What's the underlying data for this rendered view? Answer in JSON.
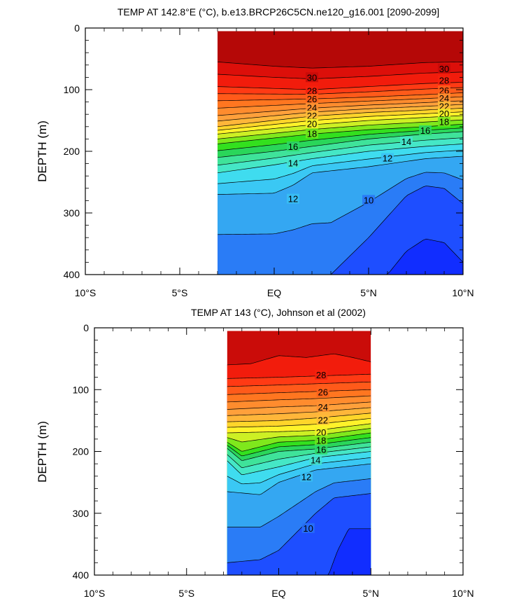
{
  "chart_data": [
    {
      "type": "contour",
      "title": "TEMP AT 142.8°E (°C), b.e13.BRCP26C5CN.ne120_g16.001 [2090-2099]",
      "ylabel": "DEPTH (m)",
      "xlim": [
        -10,
        10
      ],
      "ylim": [
        0,
        400
      ],
      "y_reversed": true,
      "data_extent_lat": [
        -3,
        10
      ],
      "x_ticks": [
        {
          "value": -10,
          "label": "10°S"
        },
        {
          "value": -5,
          "label": "5°S"
        },
        {
          "value": 0,
          "label": "EQ"
        },
        {
          "value": 5,
          "label": "5°N"
        },
        {
          "value": 10,
          "label": "10°N"
        }
      ],
      "y_ticks": [
        0,
        100,
        200,
        300,
        400
      ],
      "contour_interval": 1,
      "isotherms": [
        {
          "level": 30,
          "depth_at": [
            [
              -3,
              55
            ],
            [
              0,
              62
            ],
            [
              2,
              65
            ],
            [
              5,
              62
            ],
            [
              8,
              56
            ],
            [
              10,
              55
            ]
          ]
        },
        {
          "level": 28,
          "depth_at": [
            [
              -3,
              95
            ],
            [
              2,
              100
            ],
            [
              5,
              95
            ],
            [
              8,
              90
            ],
            [
              10,
              88
            ]
          ]
        },
        {
          "level": 26,
          "depth_at": [
            [
              -3,
              118
            ],
            [
              2,
              115
            ],
            [
              5,
              112
            ],
            [
              8,
              108
            ],
            [
              10,
              105
            ]
          ]
        },
        {
          "level": 24,
          "depth_at": [
            [
              -3,
              142
            ],
            [
              2,
              130
            ],
            [
              5,
              125
            ],
            [
              8,
              121
            ],
            [
              10,
              118
            ]
          ]
        },
        {
          "level": 22,
          "depth_at": [
            [
              -3,
              160
            ],
            [
              2,
              143
            ],
            [
              5,
              137
            ],
            [
              8,
              133
            ],
            [
              10,
              130
            ]
          ]
        },
        {
          "level": 20,
          "depth_at": [
            [
              -3,
              172
            ],
            [
              2,
              157
            ],
            [
              5,
              150
            ],
            [
              8,
              145
            ],
            [
              10,
              142
            ]
          ]
        },
        {
          "level": 18,
          "depth_at": [
            [
              -3,
              188
            ],
            [
              2,
              172
            ],
            [
              5,
              165
            ],
            [
              8,
              160
            ],
            [
              10,
              156
            ]
          ]
        },
        {
          "level": 16,
          "depth_at": [
            [
              -3,
              210
            ],
            [
              0,
              200
            ],
            [
              2,
              192
            ],
            [
              5,
              180
            ],
            [
              8,
              172
            ],
            [
              10,
              168
            ]
          ]
        },
        {
          "level": 14,
          "depth_at": [
            [
              -3,
              235
            ],
            [
              0,
              222
            ],
            [
              2,
              212
            ],
            [
              5,
              200
            ],
            [
              8,
              192
            ],
            [
              10,
              188
            ]
          ]
        },
        {
          "level": 12,
          "depth_at": [
            [
              -3,
              270
            ],
            [
              0,
              268
            ],
            [
              1,
              255
            ],
            [
              2,
              235
            ],
            [
              5,
              225
            ],
            [
              8,
              212
            ],
            [
              10,
              208
            ]
          ]
        },
        {
          "level": 10,
          "depth_at": [
            [
              3,
              400
            ],
            [
              5,
              340
            ],
            [
              7,
              272
            ],
            [
              8,
              256
            ],
            [
              9,
              260
            ],
            [
              10,
              285
            ]
          ]
        },
        {
          "level": 9,
          "depth_at": [
            [
              6,
              400
            ],
            [
              7,
              362
            ],
            [
              8,
              342
            ],
            [
              9,
              348
            ],
            [
              10,
              380
            ]
          ]
        }
      ],
      "contour_labels": [
        {
          "value": 30,
          "positions": [
            [
              2,
              81
            ],
            [
              9,
              67
            ]
          ]
        },
        {
          "value": 28,
          "positions": [
            [
              2,
              103
            ],
            [
              9,
              86
            ]
          ]
        },
        {
          "value": 26,
          "positions": [
            [
              2,
              116
            ],
            [
              9,
              102
            ]
          ]
        },
        {
          "value": 24,
          "positions": [
            [
              2,
              130
            ],
            [
              9,
              115
            ]
          ]
        },
        {
          "value": 22,
          "positions": [
            [
              2,
              143
            ],
            [
              9,
              128
            ]
          ]
        },
        {
          "value": 20,
          "positions": [
            [
              2,
              156
            ],
            [
              9,
              140
            ]
          ]
        },
        {
          "value": 18,
          "positions": [
            [
              2,
              172
            ],
            [
              9,
              153
            ]
          ]
        },
        {
          "value": 16,
          "positions": [
            [
              1,
              193
            ],
            [
              8,
              167
            ]
          ]
        },
        {
          "value": 14,
          "positions": [
            [
              1,
              220
            ],
            [
              7,
              185
            ]
          ]
        },
        {
          "value": 12,
          "positions": [
            [
              1,
              278
            ],
            [
              6,
              212
            ]
          ]
        },
        {
          "value": 10,
          "positions": [
            [
              5,
              280
            ]
          ]
        }
      ]
    },
    {
      "type": "contour",
      "title": "TEMP AT 143 (°C), Johnson et al (2002)",
      "ylabel": "DEPTH (m)",
      "xlim": [
        -10,
        10
      ],
      "ylim": [
        0,
        400
      ],
      "y_reversed": true,
      "data_extent_lat": [
        -2.8,
        5
      ],
      "x_ticks": [
        {
          "value": -10,
          "label": "10°S"
        },
        {
          "value": -5,
          "label": "5°S"
        },
        {
          "value": 0,
          "label": "EQ"
        },
        {
          "value": 5,
          "label": "5°N"
        },
        {
          "value": 10,
          "label": "10°N"
        }
      ],
      "y_ticks": [
        0,
        100,
        200,
        300,
        400
      ],
      "contour_interval": 1,
      "isotherms": [
        {
          "level": 29,
          "depth_at": [
            [
              -2.8,
              60
            ],
            [
              -1.5,
              58
            ],
            [
              0,
              45
            ],
            [
              1.5,
              48
            ],
            [
              3,
              42
            ],
            [
              4,
              48
            ],
            [
              5,
              55
            ]
          ]
        },
        {
          "level": 28,
          "depth_at": [
            [
              -2.8,
              82
            ],
            [
              0,
              80
            ],
            [
              2,
              78
            ],
            [
              5,
              75
            ]
          ]
        },
        {
          "level": 26,
          "depth_at": [
            [
              -2.8,
              108
            ],
            [
              0,
              105
            ],
            [
              2,
              103
            ],
            [
              5,
              100
            ]
          ]
        },
        {
          "level": 24,
          "depth_at": [
            [
              -2.8,
              132
            ],
            [
              0,
              128
            ],
            [
              2,
              126
            ],
            [
              5,
              120
            ]
          ]
        },
        {
          "level": 22,
          "depth_at": [
            [
              -2.8,
              152
            ],
            [
              0,
              150
            ],
            [
              2,
              146
            ],
            [
              5,
              138
            ]
          ]
        },
        {
          "level": 20,
          "depth_at": [
            [
              -2.8,
              170
            ],
            [
              0,
              168
            ],
            [
              2,
              166
            ],
            [
              5,
              155
            ]
          ]
        },
        {
          "level": 18,
          "depth_at": [
            [
              -2.8,
              185
            ],
            [
              -2,
              200
            ],
            [
              0,
              185
            ],
            [
              2,
              182
            ],
            [
              5,
              170
            ]
          ]
        },
        {
          "level": 16,
          "depth_at": [
            [
              -2.8,
              195
            ],
            [
              -2,
              215
            ],
            [
              0,
              200
            ],
            [
              2,
              196
            ],
            [
              5,
              185
            ]
          ]
        },
        {
          "level": 14,
          "depth_at": [
            [
              -2.8,
              215
            ],
            [
              -2,
              238
            ],
            [
              0,
              225
            ],
            [
              2,
              210
            ],
            [
              5,
              200
            ]
          ]
        },
        {
          "level": 12,
          "depth_at": [
            [
              -2.8,
              265
            ],
            [
              -1,
              270
            ],
            [
              0,
              250
            ],
            [
              2,
              230
            ],
            [
              5,
              220
            ]
          ]
        },
        {
          "level": 10,
          "depth_at": [
            [
              -2.8,
              380
            ],
            [
              -1,
              375
            ],
            [
              0,
              360
            ],
            [
              2,
              300
            ],
            [
              3,
              275
            ],
            [
              5,
              268
            ]
          ]
        },
        {
          "level": 9,
          "depth_at": [
            [
              2.7,
              400
            ],
            [
              3.2,
              360
            ],
            [
              3.8,
              325
            ],
            [
              5,
              325
            ]
          ]
        }
      ],
      "contour_labels": [
        {
          "value": 28,
          "positions": [
            [
              2.3,
              77
            ]
          ]
        },
        {
          "value": 26,
          "positions": [
            [
              2.4,
              105
            ]
          ]
        },
        {
          "value": 24,
          "positions": [
            [
              2.4,
              129
            ]
          ]
        },
        {
          "value": 22,
          "positions": [
            [
              2.4,
              150
            ]
          ]
        },
        {
          "value": 20,
          "positions": [
            [
              2.3,
              170
            ]
          ]
        },
        {
          "value": 18,
          "positions": [
            [
              2.3,
              183
            ]
          ]
        },
        {
          "value": 16,
          "positions": [
            [
              2.3,
              198
            ]
          ]
        },
        {
          "value": 14,
          "positions": [
            [
              2,
              215
            ]
          ]
        },
        {
          "value": 12,
          "positions": [
            [
              1.5,
              242
            ]
          ]
        },
        {
          "value": 10,
          "positions": [
            [
              1.6,
              325
            ]
          ]
        }
      ]
    }
  ]
}
